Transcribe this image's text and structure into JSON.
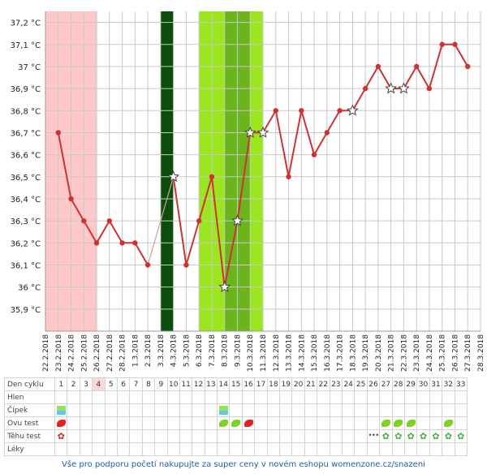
{
  "chart_data": {
    "type": "line",
    "ylim": [
      35.8,
      37.25
    ],
    "y_ticks": [
      "37,2 °C",
      "37,1 °C",
      "37 °C",
      "36,9 °C",
      "36,8 °C",
      "36,7 °C",
      "36,6 °C",
      "36,5 °C",
      "36,4 °C",
      "36,3 °C",
      "36,2 °C",
      "36,1 °C",
      "36 °C",
      "35,9 °C"
    ],
    "y_tick_values": [
      37.2,
      37.1,
      37.0,
      36.9,
      36.8,
      36.7,
      36.6,
      36.5,
      36.4,
      36.3,
      36.2,
      36.1,
      36.0,
      35.9
    ],
    "x_dates": [
      "22.2.2018",
      "23.2.2018",
      "24.2.2018",
      "25.2.2018",
      "26.2.2018",
      "27.2.2018",
      "28.2.2018",
      "1.3.2018",
      "2.3.2018",
      "3.3.2018",
      "4.3.2018",
      "5.3.2018",
      "6.3.2018",
      "7.3.2018",
      "8.3.2018",
      "9.3.2018",
      "10.3.2018",
      "11.3.2018",
      "12.3.2018",
      "13.3.2018",
      "14.3.2018",
      "15.3.2018",
      "16.3.2018",
      "17.3.2018",
      "18.3.2018",
      "19.3.2018",
      "20.3.2018",
      "21.3.2018",
      "22.3.2018",
      "23.3.2018",
      "24.3.2018",
      "25.3.2018",
      "26.3.2018",
      "27.3.2018",
      "28.3.2018"
    ],
    "series": [
      {
        "points": [
          {
            "day": 1,
            "temp": 36.7
          },
          {
            "day": 2,
            "temp": 36.4
          },
          {
            "day": 3,
            "temp": 36.3
          },
          {
            "day": 4,
            "temp": 36.2
          },
          {
            "day": 5,
            "temp": 36.3
          },
          {
            "day": 6,
            "temp": 36.2
          },
          {
            "day": 7,
            "temp": 36.2
          },
          {
            "day": 8,
            "temp": 36.1
          },
          {
            "day": 10,
            "temp": 36.5,
            "marker": "star"
          },
          {
            "day": 11,
            "temp": 36.1
          },
          {
            "day": 12,
            "temp": 36.3
          },
          {
            "day": 13,
            "temp": 36.5
          },
          {
            "day": 14,
            "temp": 36.0,
            "marker": "star"
          },
          {
            "day": 15,
            "temp": 36.3,
            "marker": "star"
          },
          {
            "day": 16,
            "temp": 36.7,
            "marker": "star"
          },
          {
            "day": 17,
            "temp": 36.7,
            "marker": "star"
          },
          {
            "day": 18,
            "temp": 36.8
          },
          {
            "day": 19,
            "temp": 36.5
          },
          {
            "day": 20,
            "temp": 36.8
          },
          {
            "day": 21,
            "temp": 36.6
          },
          {
            "day": 22,
            "temp": 36.7
          },
          {
            "day": 23,
            "temp": 36.8
          },
          {
            "day": 24,
            "temp": 36.8,
            "marker": "star"
          },
          {
            "day": 25,
            "temp": 36.9
          },
          {
            "day": 26,
            "temp": 37.0
          },
          {
            "day": 27,
            "temp": 36.9,
            "marker": "star"
          },
          {
            "day": 28,
            "temp": 36.9,
            "marker": "star"
          },
          {
            "day": 29,
            "temp": 37.0
          },
          {
            "day": 30,
            "temp": 36.9
          },
          {
            "day": 31,
            "temp": 37.1
          },
          {
            "day": 32,
            "temp": 37.1
          },
          {
            "day": 33,
            "temp": 37.0
          }
        ],
        "color": "#cc3333"
      }
    ],
    "bands": [
      {
        "from_day": 0,
        "to_day": 4,
        "color": "#ffc8c8"
      },
      {
        "from_day": 9,
        "to_day": 10,
        "color": "#0b4d0b"
      },
      {
        "from_day": 12,
        "to_day": 17,
        "color": "#9be61e"
      },
      {
        "from_day": 14,
        "to_day": 16,
        "color": "#6bb41c"
      }
    ],
    "grid": true
  },
  "table": {
    "row_labels": [
      "Den cyklu",
      "Hlen",
      "Čípek",
      "Ovu test",
      "Těhu test",
      "Léky"
    ],
    "days": [
      "1",
      "2",
      "3",
      "4",
      "5",
      "6",
      "7",
      "8",
      "9",
      "10",
      "11",
      "12",
      "13",
      "14",
      "15",
      "16",
      "17",
      "18",
      "19",
      "20",
      "21",
      "22",
      "23",
      "24",
      "25",
      "26",
      "27",
      "28",
      "29",
      "30",
      "31",
      "32",
      "33"
    ],
    "highlight_day": "4",
    "cipek": [
      1,
      14
    ],
    "ovu_test": [
      {
        "day": 1,
        "result": "positive"
      },
      {
        "day": 14,
        "result": "negative"
      },
      {
        "day": 15,
        "result": "negative"
      },
      {
        "day": 16,
        "result": "positive"
      },
      {
        "day": 27,
        "result": "negative"
      },
      {
        "day": 28,
        "result": "negative"
      },
      {
        "day": 29,
        "result": "negative"
      },
      {
        "day": 32,
        "result": "negative"
      }
    ],
    "tehu_test": [
      {
        "day": 1,
        "type": "red-flower"
      },
      {
        "day": 26,
        "type": "dots"
      },
      {
        "day": 27,
        "type": "flower"
      },
      {
        "day": 28,
        "type": "flower"
      },
      {
        "day": 29,
        "type": "flower"
      },
      {
        "day": 30,
        "type": "flower"
      },
      {
        "day": 31,
        "type": "flower"
      },
      {
        "day": 32,
        "type": "flower"
      },
      {
        "day": 33,
        "type": "flower"
      }
    ],
    "icons": {
      "cipek": "cervix-icon",
      "ovu_positive": "ovu-test-positive-icon",
      "ovu_negative": "ovu-test-negative-icon",
      "tehu": "pregnancy-test-flower-icon"
    }
  },
  "footer": "Vše pro podporu početí nakupujte za super ceny v novém eshopu womenzone.cz/snazeni"
}
